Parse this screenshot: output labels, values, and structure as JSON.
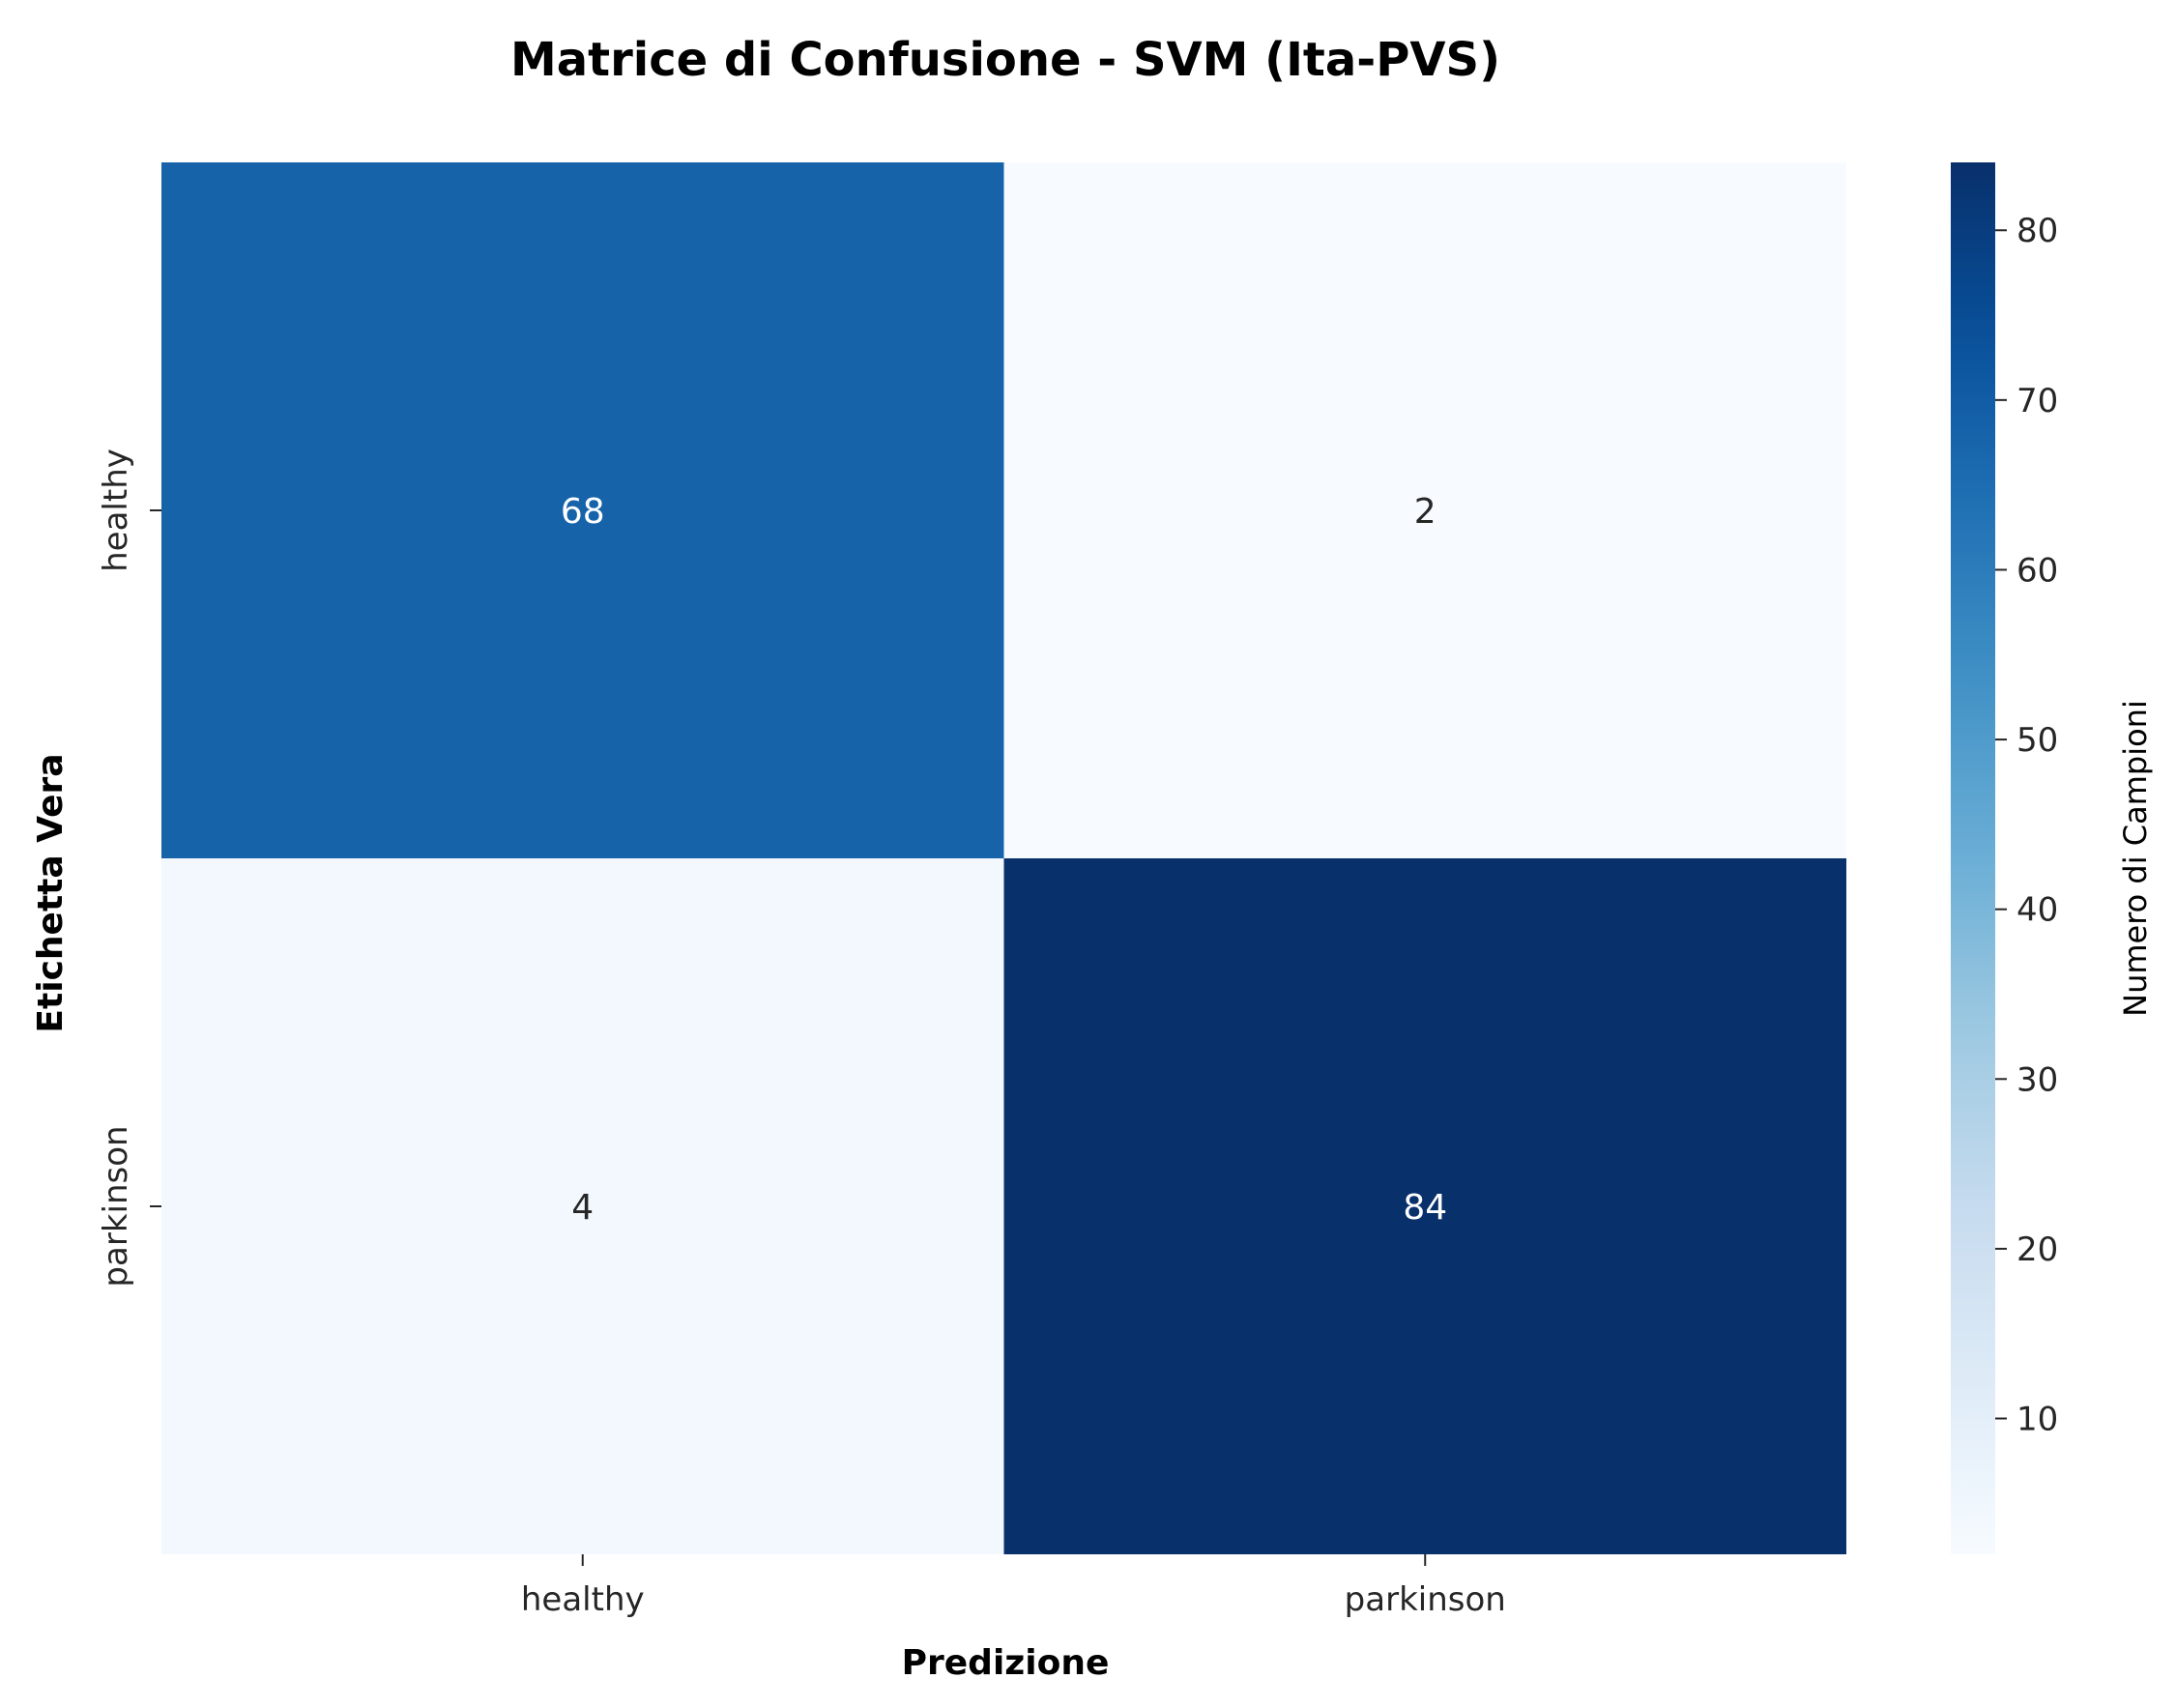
{
  "chart_data": {
    "type": "heatmap",
    "title": "Matrice di Confusione - SVM (Ita-PVS)",
    "xlabel": "Predizione",
    "ylabel": "Etichetta Vera",
    "x_categories": [
      "healthy",
      "parkinson"
    ],
    "y_categories": [
      "healthy",
      "parkinson"
    ],
    "values": [
      [
        68,
        2
      ],
      [
        4,
        84
      ]
    ],
    "colormap": "Blues",
    "colorbar": {
      "label": "Numero di Campioni",
      "range": [
        2,
        84
      ],
      "ticks": [
        10,
        20,
        30,
        40,
        50,
        60,
        70,
        80
      ]
    }
  }
}
